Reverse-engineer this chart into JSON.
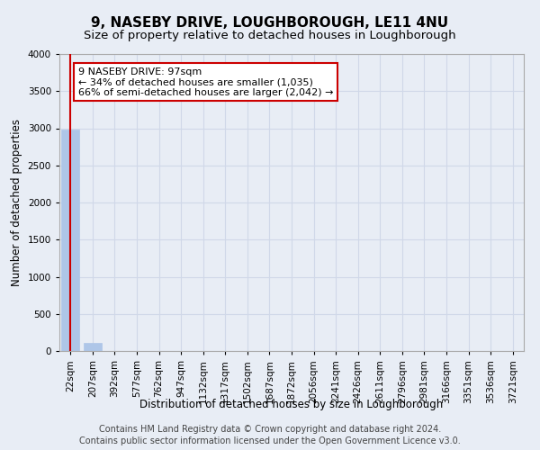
{
  "title": "9, NASEBY DRIVE, LOUGHBOROUGH, LE11 4NU",
  "subtitle": "Size of property relative to detached houses in Loughborough",
  "xlabel": "Distribution of detached houses by size in Loughborough",
  "ylabel": "Number of detached properties",
  "footer_line1": "Contains HM Land Registry data © Crown copyright and database right 2024.",
  "footer_line2": "Contains public sector information licensed under the Open Government Licence v3.0.",
  "categories": [
    "22sqm",
    "207sqm",
    "392sqm",
    "577sqm",
    "762sqm",
    "947sqm",
    "1132sqm",
    "1317sqm",
    "1502sqm",
    "1687sqm",
    "1872sqm",
    "2056sqm",
    "2241sqm",
    "2426sqm",
    "2611sqm",
    "2796sqm",
    "2981sqm",
    "3166sqm",
    "3351sqm",
    "3536sqm",
    "3721sqm"
  ],
  "values": [
    2980,
    110,
    5,
    2,
    1,
    1,
    0,
    0,
    0,
    0,
    0,
    0,
    0,
    0,
    0,
    0,
    0,
    0,
    0,
    0,
    0
  ],
  "bar_color": "#aec6e8",
  "bar_edge_color": "#aec6e8",
  "ylim": [
    0,
    4000
  ],
  "yticks": [
    0,
    500,
    1000,
    1500,
    2000,
    2500,
    3000,
    3500,
    4000
  ],
  "property_bin_index": 0,
  "annotation_title": "9 NASEBY DRIVE: 97sqm",
  "annotation_line1": "← 34% of detached houses are smaller (1,035)",
  "annotation_line2": "66% of semi-detached houses are larger (2,042) →",
  "annotation_box_color": "#ffffff",
  "annotation_border_color": "#cc0000",
  "vline_color": "#cc0000",
  "grid_color": "#d0d8e8",
  "bg_color": "#e8edf5",
  "title_fontsize": 11,
  "subtitle_fontsize": 9.5,
  "axis_label_fontsize": 8.5,
  "tick_fontsize": 7.5,
  "annotation_fontsize": 8,
  "footer_fontsize": 7
}
